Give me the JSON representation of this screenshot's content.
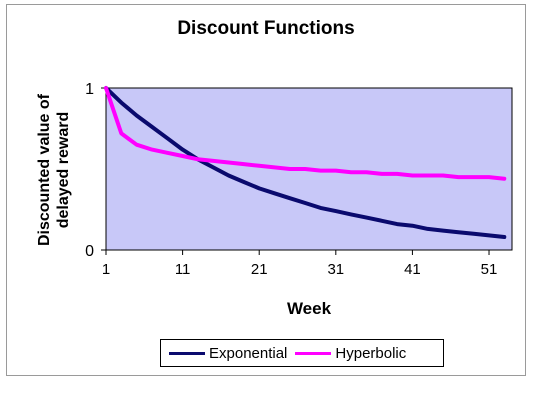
{
  "chart_data": {
    "type": "line",
    "title": "Discount Functions",
    "xlabel": "Week",
    "ylabel": "Discounted value of delayed reward",
    "xlim": [
      1,
      54
    ],
    "ylim": [
      0,
      1
    ],
    "x_ticks": [
      1,
      11,
      21,
      31,
      41,
      51
    ],
    "y_ticks": [
      0,
      1
    ],
    "plot_background": "#c8c8f8",
    "grid": false,
    "legend_placement": "bottom",
    "x": [
      1,
      3,
      5,
      7,
      9,
      11,
      13,
      15,
      17,
      19,
      21,
      23,
      25,
      27,
      29,
      31,
      33,
      35,
      37,
      39,
      41,
      43,
      45,
      47,
      49,
      51,
      53
    ],
    "series": [
      {
        "name": "Exponential",
        "color": "#0a0a6e",
        "values": [
          1.0,
          0.91,
          0.83,
          0.76,
          0.69,
          0.62,
          0.56,
          0.51,
          0.46,
          0.42,
          0.38,
          0.35,
          0.32,
          0.29,
          0.26,
          0.24,
          0.22,
          0.2,
          0.18,
          0.16,
          0.15,
          0.13,
          0.12,
          0.11,
          0.1,
          0.09,
          0.08
        ]
      },
      {
        "name": "Hyperbolic",
        "color": "#ff00ff",
        "values": [
          1.0,
          0.72,
          0.65,
          0.62,
          0.6,
          0.58,
          0.56,
          0.55,
          0.54,
          0.53,
          0.52,
          0.51,
          0.5,
          0.5,
          0.49,
          0.49,
          0.48,
          0.48,
          0.47,
          0.47,
          0.46,
          0.46,
          0.46,
          0.45,
          0.45,
          0.45,
          0.44
        ]
      }
    ]
  }
}
